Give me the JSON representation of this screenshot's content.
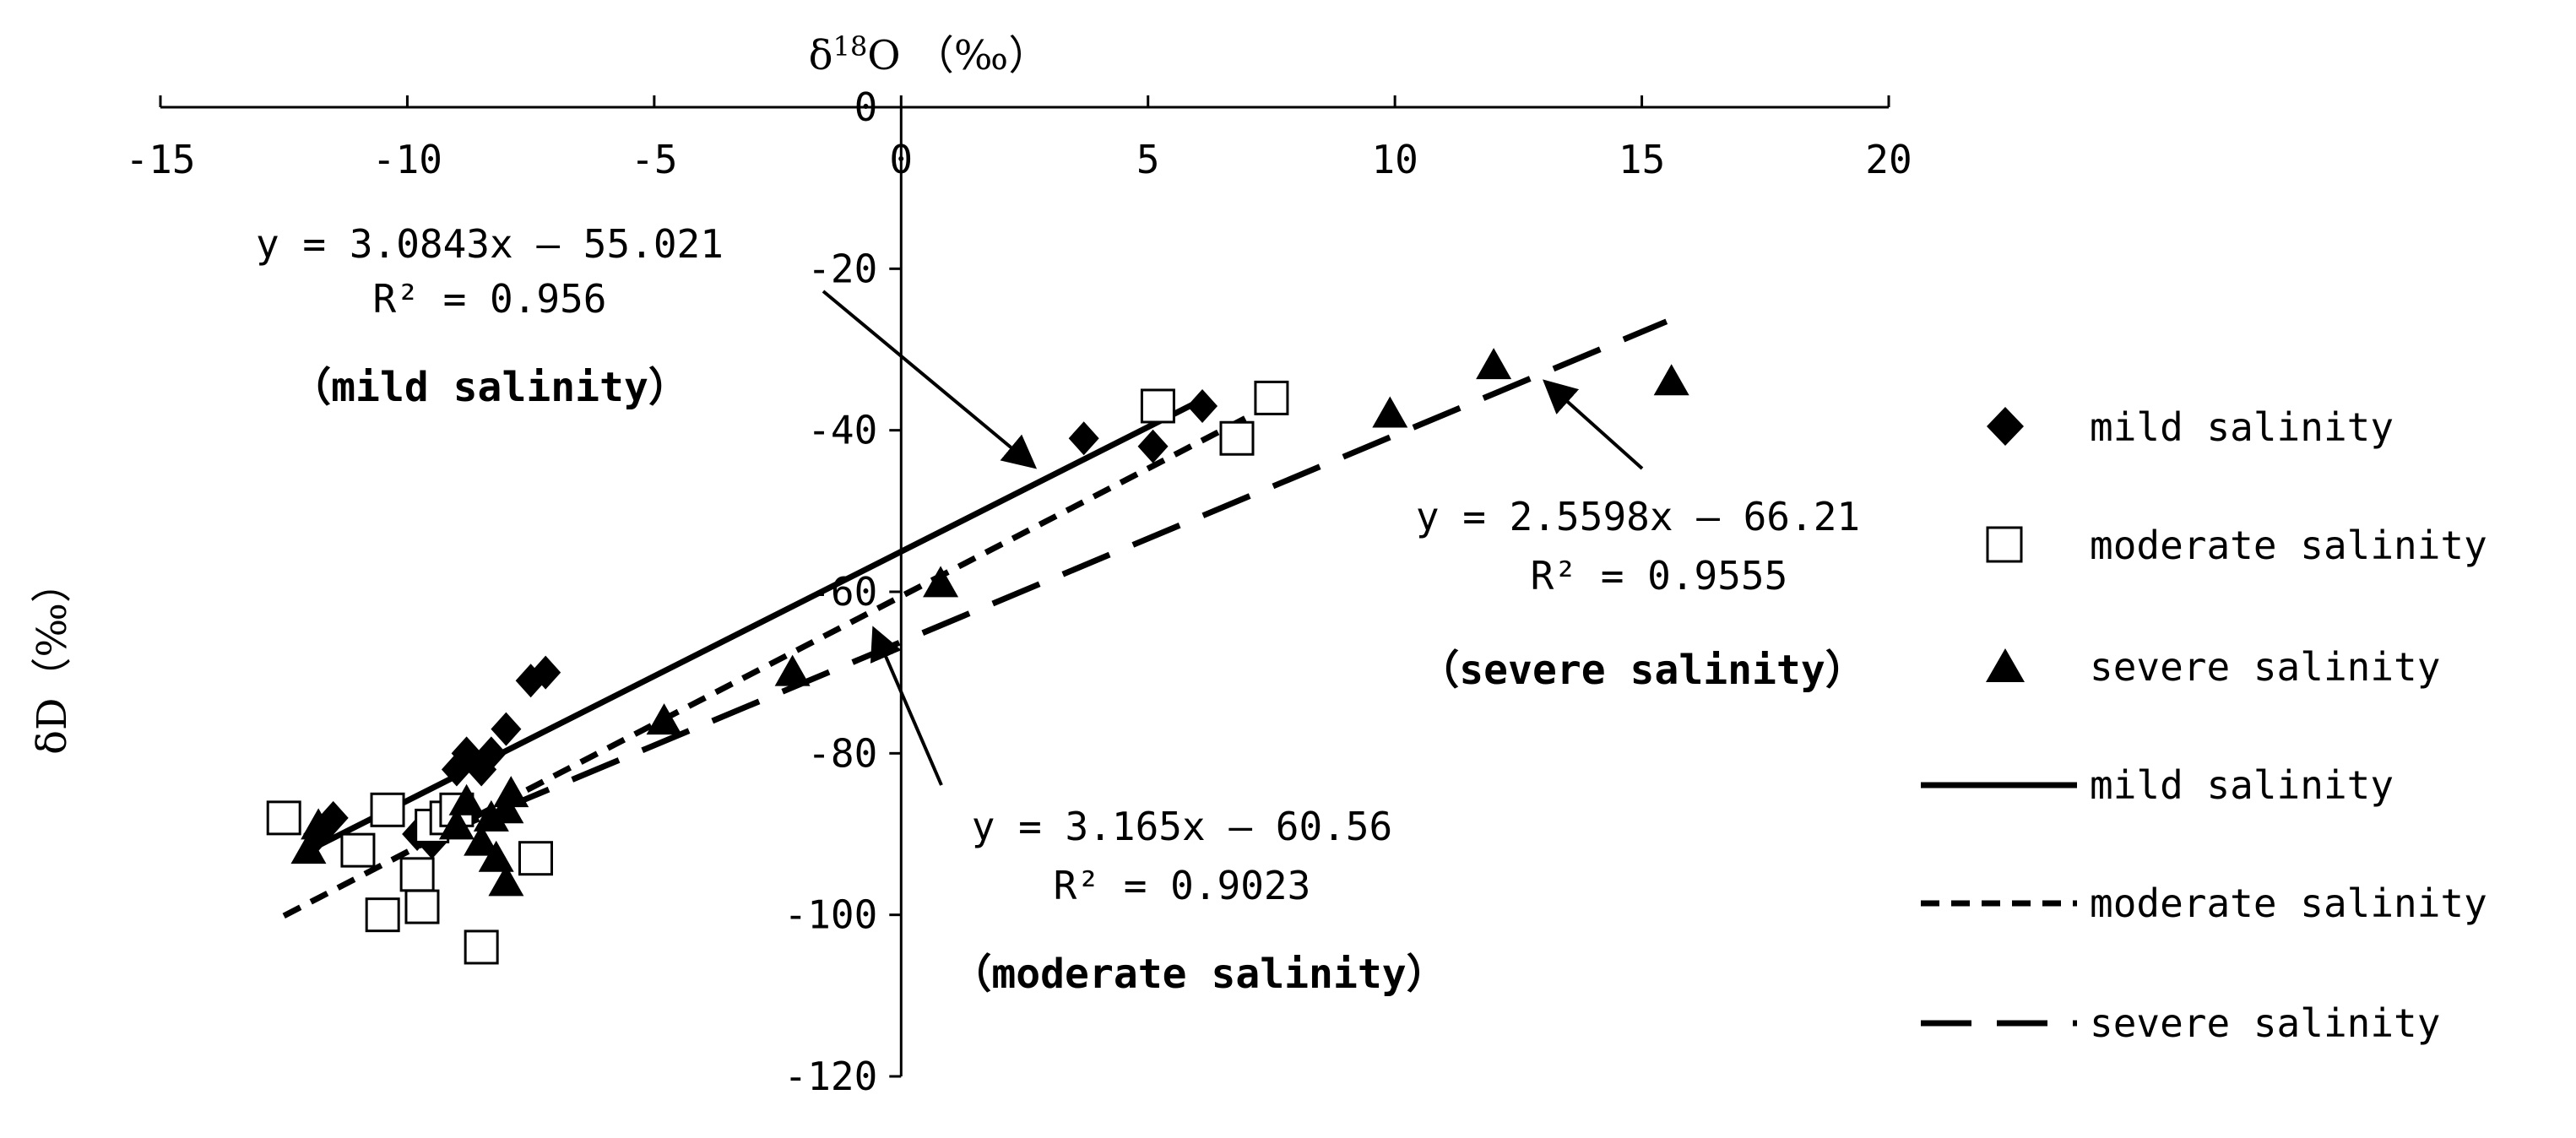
{
  "chart_data": {
    "type": "scatter",
    "xlabel_parts": [
      "δ",
      "18",
      "O （‰）"
    ],
    "ylabel": "δD（‰）",
    "xlim": [
      -15,
      20
    ],
    "ylim": [
      -120,
      0
    ],
    "x_ticks": [
      -15,
      -10,
      -5,
      0,
      5,
      10,
      15,
      20
    ],
    "y_ticks": [
      0,
      -20,
      -40,
      -60,
      -80,
      -100,
      -120
    ],
    "series": [
      {
        "name": "mild salinity",
        "marker": "diamond",
        "points": [
          [
            -11.8,
            -90
          ],
          [
            -11.5,
            -88
          ],
          [
            -9.8,
            -90
          ],
          [
            -9.5,
            -91
          ],
          [
            -9.0,
            -82
          ],
          [
            -8.8,
            -80
          ],
          [
            -8.5,
            -82
          ],
          [
            -8.3,
            -80
          ],
          [
            -8.0,
            -77
          ],
          [
            -7.5,
            -71
          ],
          [
            -7.2,
            -70
          ],
          [
            3.7,
            -41
          ],
          [
            5.1,
            -42
          ],
          [
            6.1,
            -37
          ]
        ],
        "fit": {
          "slope": 3.0843,
          "intercept": -55.021,
          "x_range": [
            -12,
            6.2
          ],
          "style": "solid"
        }
      },
      {
        "name": "moderate salinity",
        "marker": "square",
        "points": [
          [
            -12.5,
            -88
          ],
          [
            -11.0,
            -92
          ],
          [
            -10.5,
            -100
          ],
          [
            -10.4,
            -87
          ],
          [
            -9.8,
            -95
          ],
          [
            -9.7,
            -99
          ],
          [
            -9.5,
            -89
          ],
          [
            -9.2,
            -88
          ],
          [
            -9.0,
            -87
          ],
          [
            -8.5,
            -104
          ],
          [
            -7.4,
            -93
          ],
          [
            5.2,
            -37
          ],
          [
            6.8,
            -41
          ],
          [
            7.5,
            -36
          ]
        ],
        "fit": {
          "slope": 3.165,
          "intercept": -60.56,
          "x_range": [
            -12.5,
            7.5
          ],
          "style": "dashed"
        }
      },
      {
        "name": "severe salinity",
        "marker": "triangle",
        "points": [
          [
            -12.0,
            -92
          ],
          [
            -11.8,
            -89
          ],
          [
            -9.0,
            -89
          ],
          [
            -8.8,
            -86
          ],
          [
            -8.5,
            -91
          ],
          [
            -8.3,
            -88
          ],
          [
            -8.2,
            -93
          ],
          [
            -8.0,
            -87
          ],
          [
            -8.0,
            -96
          ],
          [
            -7.9,
            -85
          ],
          [
            -4.8,
            -76
          ],
          [
            -2.2,
            -70
          ],
          [
            0.8,
            -59
          ],
          [
            9.9,
            -38
          ],
          [
            12.0,
            -32
          ],
          [
            15.6,
            -34
          ]
        ],
        "fit": {
          "slope": 2.5598,
          "intercept": -66.21,
          "x_range": [
            -9.5,
            15.5
          ],
          "style": "long-dash"
        }
      }
    ],
    "annotations": [
      {
        "name": "mild",
        "lines": [
          "y = 3.0843x – 55.021",
          "R² = 0.956",
          "（mild salinity）"
        ]
      },
      {
        "name": "moderate",
        "lines": [
          "y = 3.165x – 60.56",
          "R² = 0.9023",
          "（moderate salinity）"
        ]
      },
      {
        "name": "severe",
        "lines": [
          "y = 2.5598x – 66.21",
          "R² = 0.9555",
          "（severe salinity）"
        ]
      }
    ],
    "legend": {
      "placement": "right",
      "entries": [
        "mild salinity",
        "moderate salinity",
        "severe salinity",
        "mild salinity",
        "moderate salinity",
        "severe salinity"
      ]
    },
    "grid": false
  }
}
